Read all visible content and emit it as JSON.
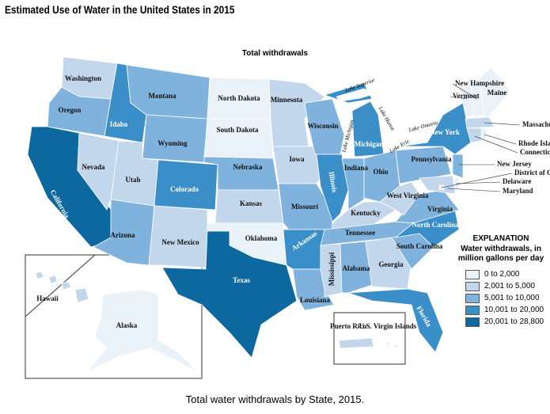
{
  "title": "Estimated Use of Water in the United States in 2015",
  "subtitle": "Total withdrawals",
  "caption": "Total water withdrawals by State, 2015.",
  "legend": {
    "title": "EXPLANATION",
    "subtitle": "Water withdrawals, in million gallons per day",
    "classes": [
      {
        "label": "0 to 2,000",
        "color": "#e9f1f9"
      },
      {
        "label": "2,001 to 5,000",
        "color": "#c2d6ec"
      },
      {
        "label": "5,001 to 10,000",
        "color": "#7fb2dc"
      },
      {
        "label": "10,001 to 20,000",
        "color": "#3a8fc8"
      },
      {
        "label": "20,001 to 28,800",
        "color": "#0c689f"
      }
    ]
  },
  "states": [
    {
      "name": "Washington",
      "class": 1
    },
    {
      "name": "Oregon",
      "class": 2
    },
    {
      "name": "California",
      "class": 4
    },
    {
      "name": "Nevada",
      "class": 1
    },
    {
      "name": "Idaho",
      "class": 3
    },
    {
      "name": "Montana",
      "class": 2
    },
    {
      "name": "Wyoming",
      "class": 2
    },
    {
      "name": "Utah",
      "class": 1
    },
    {
      "name": "Colorado",
      "class": 3
    },
    {
      "name": "Arizona",
      "class": 2
    },
    {
      "name": "New Mexico",
      "class": 1
    },
    {
      "name": "North Dakota",
      "class": 0
    },
    {
      "name": "South Dakota",
      "class": 0
    },
    {
      "name": "Nebraska",
      "class": 2
    },
    {
      "name": "Kansas",
      "class": 1
    },
    {
      "name": "Oklahoma",
      "class": 0
    },
    {
      "name": "Texas",
      "class": 4
    },
    {
      "name": "Minnesota",
      "class": 1
    },
    {
      "name": "Iowa",
      "class": 1
    },
    {
      "name": "Missouri",
      "class": 2
    },
    {
      "name": "Arkansas",
      "class": 3
    },
    {
      "name": "Louisiana",
      "class": 2
    },
    {
      "name": "Wisconsin",
      "class": 2
    },
    {
      "name": "Illinois",
      "class": 3
    },
    {
      "name": "Michigan",
      "class": 3
    },
    {
      "name": "Indiana",
      "class": 2
    },
    {
      "name": "Ohio",
      "class": 2
    },
    {
      "name": "Kentucky",
      "class": 1
    },
    {
      "name": "Tennessee",
      "class": 2
    },
    {
      "name": "Mississippi",
      "class": 1
    },
    {
      "name": "Alabama",
      "class": 2
    },
    {
      "name": "Georgia",
      "class": 1
    },
    {
      "name": "Florida",
      "class": 3
    },
    {
      "name": "South Carolina",
      "class": 2
    },
    {
      "name": "North Carolina",
      "class": 3
    },
    {
      "name": "Virginia",
      "class": 2
    },
    {
      "name": "West Virginia",
      "class": 1
    },
    {
      "name": "Pennsylvania",
      "class": 2
    },
    {
      "name": "New York",
      "class": 3
    },
    {
      "name": "Vermont",
      "class": 0
    },
    {
      "name": "New Hampshire",
      "class": 0
    },
    {
      "name": "Maine",
      "class": 0
    },
    {
      "name": "Massachusetts",
      "class": 1
    },
    {
      "name": "Rhode Island",
      "class": 0
    },
    {
      "name": "Connecticut",
      "class": 1
    },
    {
      "name": "New Jersey",
      "class": 2
    },
    {
      "name": "Delaware",
      "class": 0
    },
    {
      "name": "Maryland",
      "class": 1
    },
    {
      "name": "District of Columbia",
      "class": 0
    },
    {
      "name": "Hawaii",
      "class": 1
    },
    {
      "name": "Alaska",
      "class": 0
    },
    {
      "name": "Puerto Rico",
      "class": 1
    },
    {
      "name": "U.S. Virgin Islands",
      "class": 0
    }
  ],
  "lakes": [
    "Lake Superior",
    "Lake Michigan",
    "Lake Huron",
    "Lake Ontario",
    "Lake Erie"
  ]
}
